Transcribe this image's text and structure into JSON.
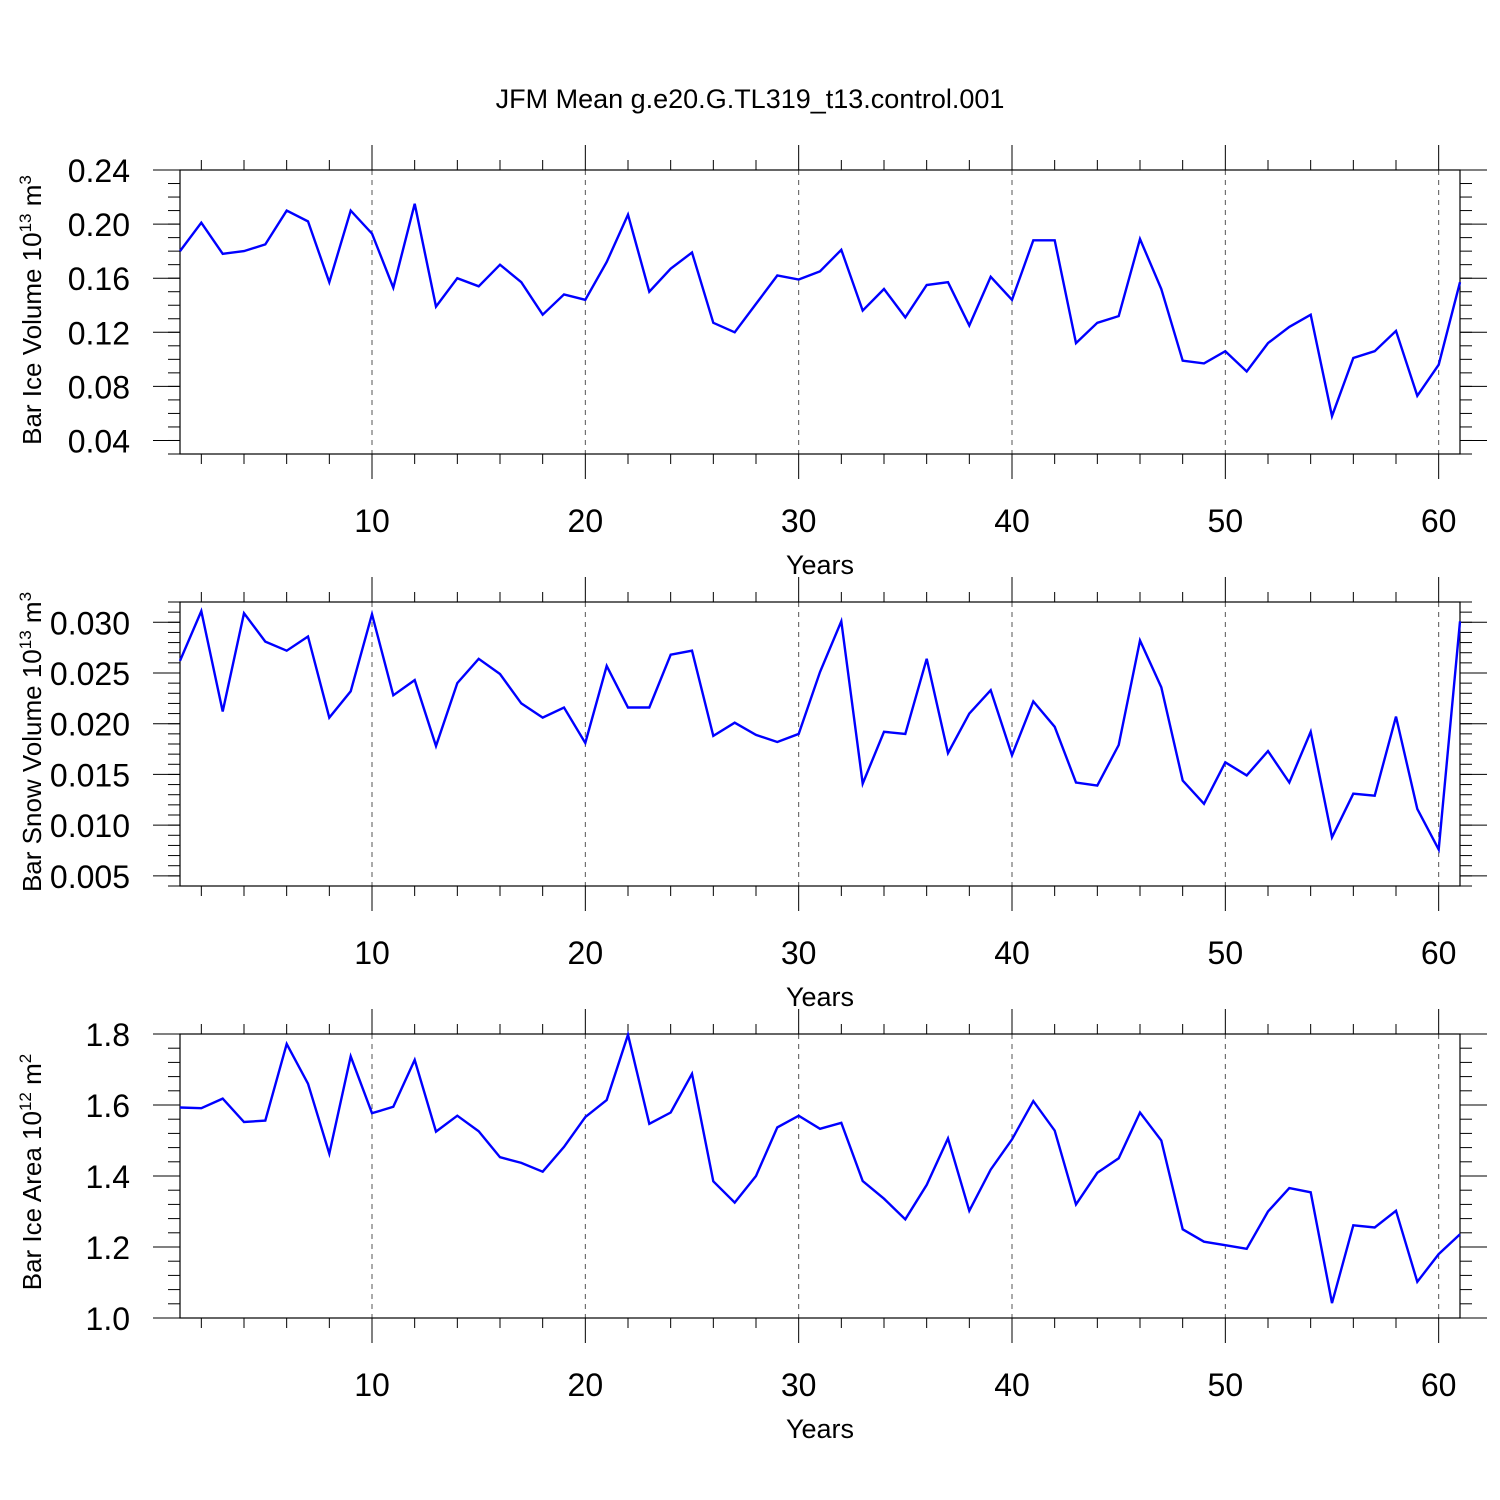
{
  "figure_title": "JFM Mean g.e20.G.TL319_t13.control.001",
  "chart_data": [
    {
      "type": "line",
      "name": "bar-ice-volume",
      "ylabel": "Bar Ice Volume 10",
      "ylabel_exp": "13",
      "ylabel_unit": "m",
      "ylabel_unit_exp": "3",
      "xlabel": "Years",
      "xlim": [
        1,
        61
      ],
      "ylim": [
        0.03,
        0.24
      ],
      "x_ticks": [
        10,
        20,
        30,
        40,
        50,
        60
      ],
      "x_tick_labels": [
        "10",
        "20",
        "30",
        "40",
        "50",
        "60"
      ],
      "y_ticks": [
        0.04,
        0.08,
        0.12,
        0.16,
        0.2,
        0.24
      ],
      "y_tick_labels": [
        "0.04",
        "0.08",
        "0.12",
        "0.16",
        "0.20",
        "0.24"
      ],
      "y_minor_step": 0.01,
      "grid": "vertical dashed at major x ticks",
      "color": "#0000ff",
      "x": [
        1,
        2,
        3,
        4,
        5,
        6,
        7,
        8,
        9,
        10,
        11,
        12,
        13,
        14,
        15,
        16,
        17,
        18,
        19,
        20,
        21,
        22,
        23,
        24,
        25,
        26,
        27,
        28,
        29,
        30,
        31,
        32,
        33,
        34,
        35,
        36,
        37,
        38,
        39,
        40,
        41,
        42,
        43,
        44,
        45,
        46,
        47,
        48,
        49,
        50,
        51,
        52,
        53,
        54,
        55,
        56,
        57,
        58,
        59,
        60,
        61
      ],
      "values": [
        0.18,
        0.201,
        0.178,
        0.18,
        0.185,
        0.21,
        0.202,
        0.157,
        0.21,
        0.193,
        0.153,
        0.215,
        0.139,
        0.16,
        0.154,
        0.17,
        0.157,
        0.133,
        0.148,
        0.144,
        0.172,
        0.207,
        0.15,
        0.167,
        0.179,
        0.127,
        0.12,
        0.141,
        0.162,
        0.159,
        0.165,
        0.181,
        0.136,
        0.152,
        0.131,
        0.155,
        0.157,
        0.125,
        0.161,
        0.144,
        0.188,
        0.188,
        0.112,
        0.127,
        0.132,
        0.189,
        0.152,
        0.099,
        0.097,
        0.106,
        0.091,
        0.112,
        0.124,
        0.133,
        0.058,
        0.101,
        0.106,
        0.121,
        0.073,
        0.096,
        0.157
      ]
    },
    {
      "type": "line",
      "name": "bar-snow-volume",
      "ylabel": "Bar Snow Volume 10",
      "ylabel_exp": "13",
      "ylabel_unit": "m",
      "ylabel_unit_exp": "3",
      "xlabel": "Years",
      "xlim": [
        1,
        61
      ],
      "ylim": [
        0.004,
        0.032
      ],
      "x_ticks": [
        10,
        20,
        30,
        40,
        50,
        60
      ],
      "x_tick_labels": [
        "10",
        "20",
        "30",
        "40",
        "50",
        "60"
      ],
      "y_ticks": [
        0.005,
        0.01,
        0.015,
        0.02,
        0.025,
        0.03
      ],
      "y_tick_labels": [
        "0.005",
        "0.010",
        "0.015",
        "0.020",
        "0.025",
        "0.030"
      ],
      "y_minor_step": 0.001,
      "grid": "vertical dashed at major x ticks",
      "color": "#0000ff",
      "x": [
        1,
        2,
        3,
        4,
        5,
        6,
        7,
        8,
        9,
        10,
        11,
        12,
        13,
        14,
        15,
        16,
        17,
        18,
        19,
        20,
        21,
        22,
        23,
        24,
        25,
        26,
        27,
        28,
        29,
        30,
        31,
        32,
        33,
        34,
        35,
        36,
        37,
        38,
        39,
        40,
        41,
        42,
        43,
        44,
        45,
        46,
        47,
        48,
        49,
        50,
        51,
        52,
        53,
        54,
        55,
        56,
        57,
        58,
        59,
        60,
        61
      ],
      "values": [
        0.0262,
        0.0311,
        0.0212,
        0.0309,
        0.0281,
        0.0272,
        0.0286,
        0.0206,
        0.0232,
        0.0308,
        0.0228,
        0.0243,
        0.0178,
        0.024,
        0.0264,
        0.0249,
        0.022,
        0.0206,
        0.0216,
        0.0181,
        0.0257,
        0.0216,
        0.0216,
        0.0268,
        0.0272,
        0.0188,
        0.0201,
        0.0189,
        0.0182,
        0.019,
        0.0251,
        0.0301,
        0.0141,
        0.0192,
        0.019,
        0.0264,
        0.0171,
        0.021,
        0.0233,
        0.0169,
        0.0222,
        0.0197,
        0.0142,
        0.0139,
        0.0179,
        0.0282,
        0.0236,
        0.0144,
        0.0121,
        0.0162,
        0.0149,
        0.0173,
        0.0142,
        0.0192,
        0.0088,
        0.0131,
        0.0129,
        0.0207,
        0.0116,
        0.0076,
        0.0301
      ]
    },
    {
      "type": "line",
      "name": "bar-ice-area",
      "ylabel": "Bar Ice Area 10",
      "ylabel_exp": "12",
      "ylabel_unit": "m",
      "ylabel_unit_exp": "2",
      "xlabel": "Years",
      "xlim": [
        1,
        61
      ],
      "ylim": [
        1.0,
        1.8
      ],
      "x_ticks": [
        10,
        20,
        30,
        40,
        50,
        60
      ],
      "x_tick_labels": [
        "10",
        "20",
        "30",
        "40",
        "50",
        "60"
      ],
      "y_ticks": [
        1.0,
        1.2,
        1.4,
        1.6,
        1.8
      ],
      "y_tick_labels": [
        "1.0",
        "1.2",
        "1.4",
        "1.6",
        "1.8"
      ],
      "y_minor_step": 0.04,
      "grid": "vertical dashed at major x ticks",
      "color": "#0000ff",
      "x": [
        1,
        2,
        3,
        4,
        5,
        6,
        7,
        8,
        9,
        10,
        11,
        12,
        13,
        14,
        15,
        16,
        17,
        18,
        19,
        20,
        21,
        22,
        23,
        24,
        25,
        26,
        27,
        28,
        29,
        30,
        31,
        32,
        33,
        34,
        35,
        36,
        37,
        38,
        39,
        40,
        41,
        42,
        43,
        44,
        45,
        46,
        47,
        48,
        49,
        50,
        51,
        52,
        53,
        54,
        55,
        56,
        57,
        58,
        59,
        60,
        61
      ],
      "values": [
        1.593,
        1.591,
        1.618,
        1.552,
        1.556,
        1.772,
        1.66,
        1.463,
        1.737,
        1.577,
        1.595,
        1.727,
        1.525,
        1.57,
        1.526,
        1.453,
        1.437,
        1.412,
        1.482,
        1.566,
        1.614,
        1.798,
        1.547,
        1.579,
        1.688,
        1.385,
        1.325,
        1.4,
        1.537,
        1.57,
        1.533,
        1.55,
        1.386,
        1.336,
        1.278,
        1.375,
        1.506,
        1.302,
        1.418,
        1.503,
        1.611,
        1.528,
        1.32,
        1.409,
        1.45,
        1.579,
        1.5,
        1.25,
        1.215,
        1.205,
        1.195,
        1.3,
        1.366,
        1.354,
        1.042,
        1.261,
        1.255,
        1.302,
        1.102,
        1.18,
        1.236
      ]
    }
  ]
}
